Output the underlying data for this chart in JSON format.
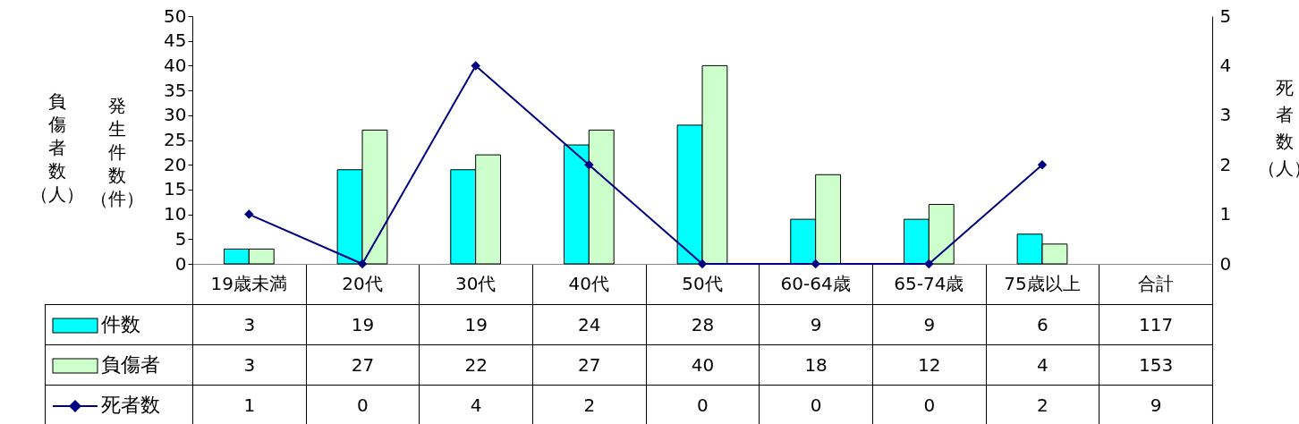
{
  "chart_data": {
    "type": "bar",
    "categories": [
      "19歳未満",
      "20代",
      "30代",
      "40代",
      "50代",
      "60-64歳",
      "65-74歳",
      "75歳以上",
      "合計"
    ],
    "series": [
      {
        "name": "件数",
        "type": "bar",
        "color": "#00ffff",
        "values": [
          3,
          19,
          19,
          24,
          28,
          9,
          9,
          6,
          null
        ],
        "value_labels": [
          "3",
          "19",
          "19",
          "24",
          "28",
          "9",
          "9",
          "6",
          "117"
        ]
      },
      {
        "name": "負傷者",
        "type": "bar",
        "color": "#ccffcc",
        "values": [
          3,
          27,
          22,
          27,
          40,
          18,
          12,
          4,
          null
        ],
        "value_labels": [
          "3",
          "27",
          "22",
          "27",
          "40",
          "18",
          "12",
          "4",
          "153"
        ]
      },
      {
        "name": "死者数",
        "type": "line",
        "axis": "y2",
        "color": "#000080",
        "marker": "diamond",
        "values": [
          1,
          0,
          4,
          2,
          0,
          0,
          0,
          2,
          null
        ],
        "value_labels": [
          "1",
          "0",
          "4",
          "2",
          "0",
          "0",
          "0",
          "2",
          "9"
        ]
      }
    ],
    "ylabel": "発生件数（件）",
    "y2label": "死者数（人）",
    "annotations": [
      "負傷者数（人）"
    ],
    "ylim": [
      0,
      50
    ],
    "yticks": [
      0,
      5,
      10,
      15,
      20,
      25,
      30,
      35,
      40,
      45,
      50
    ],
    "y2lim": [
      0,
      5
    ],
    "y2ticks": [
      0,
      1,
      2,
      3,
      4,
      5
    ],
    "grid": false,
    "legend": "bottom"
  }
}
